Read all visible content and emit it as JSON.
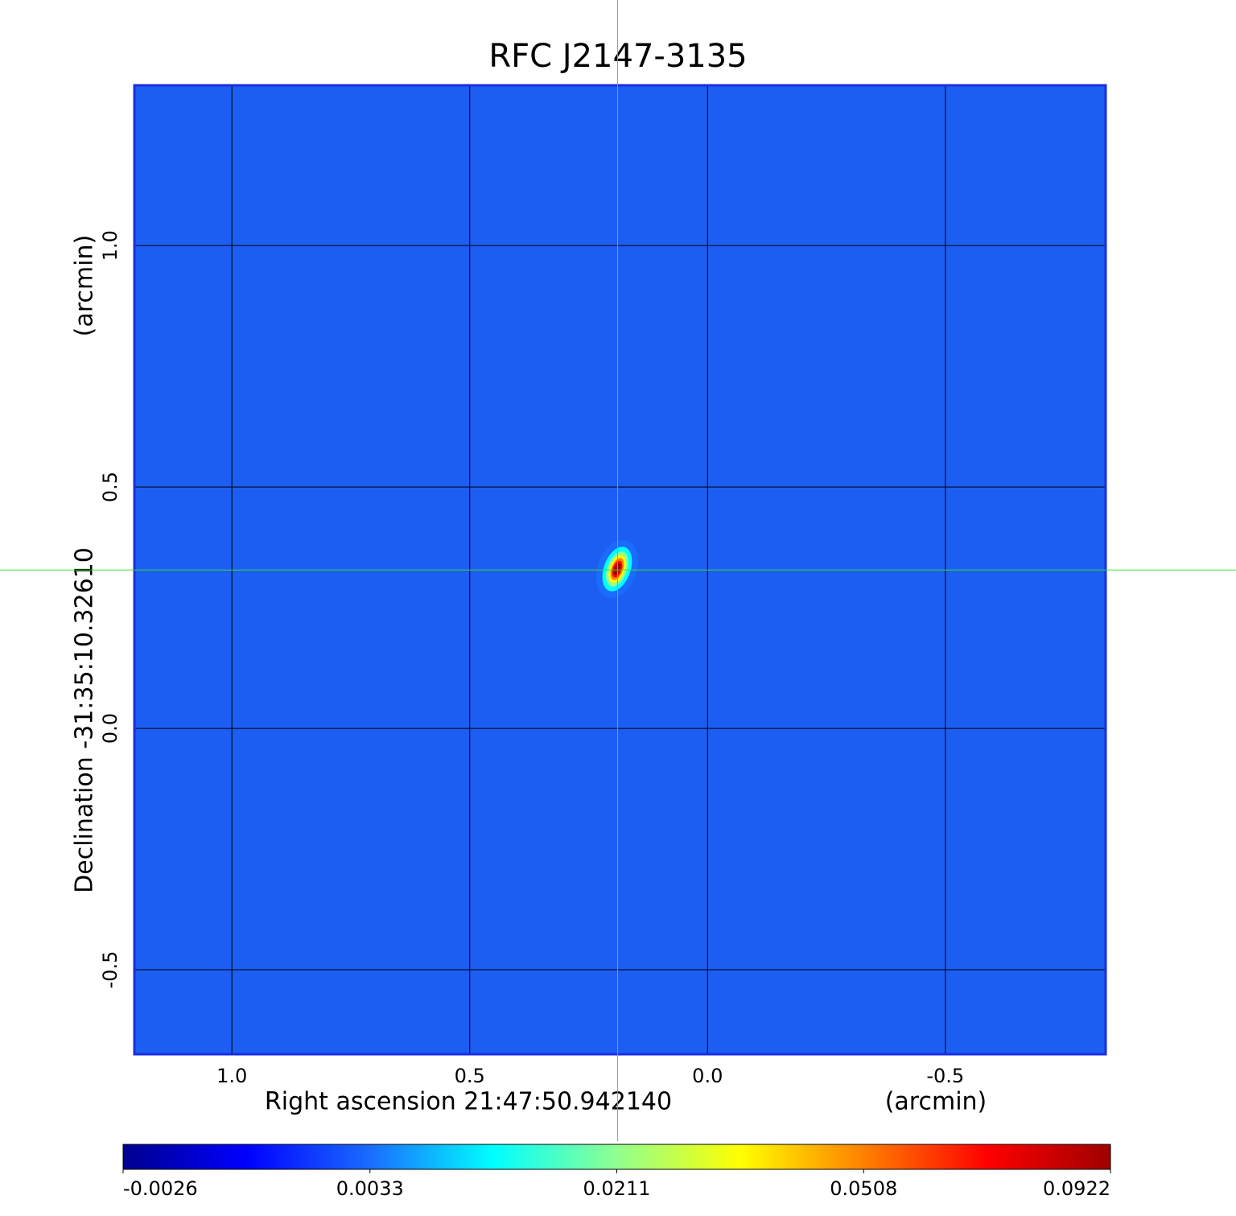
{
  "chart_data": {
    "type": "image",
    "title": "RFC J2147-3135",
    "xlabel": "Right ascension  21:47:50.942140",
    "xunit": "(arcmin)",
    "ylabel": "Declination  -31:35:10.32610",
    "yunit": "(arcmin)",
    "xlim": [
      1.205,
      -0.837
    ],
    "ylim": [
      -0.675,
      1.332
    ],
    "xticks": [
      {
        "value": 1,
        "label": "1.0"
      },
      0.5,
      {
        "value": 0,
        "label": "0.0"
      },
      -0.5
    ],
    "yticks": [
      -0.5,
      {
        "value": 0,
        "label": "0.0"
      },
      0.5,
      {
        "value": 1,
        "label": "1.0"
      }
    ],
    "grid": true,
    "background_color": "#1c5ef2",
    "frame_color": "#1a2ee0",
    "title_color": "#1a1ad0",
    "crosshair_color": "#33e033",
    "crosshair": {
      "x": 0.189,
      "y": 0.328
    },
    "source": {
      "x": 0.19,
      "y": 0.33,
      "peak": 0.0922
    },
    "colorbar_ticks": [
      -0.0026,
      0.0033,
      0.0211,
      0.0508,
      0.0922
    ],
    "colormap": [
      "#00008f",
      "#0000ff",
      "#1a6cff",
      "#00ffff",
      "#90ff90",
      "#ffff00",
      "#ff8000",
      "#ff0000",
      "#9f0000"
    ]
  }
}
